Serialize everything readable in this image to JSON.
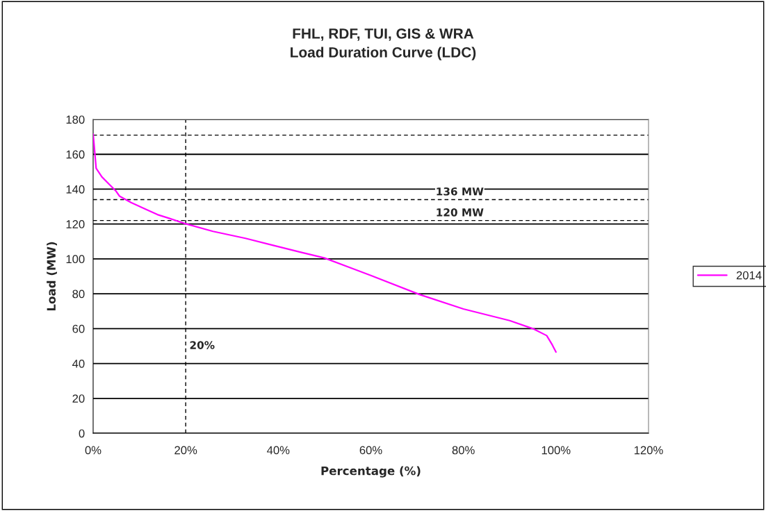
{
  "chart_data": {
    "type": "line",
    "title": "FHL, RDF, TUI, GIS & WRA\nLoad Duration Curve (LDC)",
    "xlabel": "Percentage (%)",
    "ylabel": "Load (MW)",
    "x": [
      0,
      0.65,
      1.9,
      3.4,
      4.9,
      5.7,
      8.2,
      11.4,
      13.9,
      16.4,
      19.9,
      25.9,
      32.9,
      38.9,
      44.9,
      47.4,
      50,
      60,
      70.5,
      80,
      90,
      95,
      98,
      99.2,
      100
    ],
    "series": [
      {
        "name": "2014",
        "color": "#ff00ff",
        "values": [
          171.6,
          152,
          147,
          143,
          139,
          136,
          132.3,
          128.4,
          125.4,
          123.3,
          120.2,
          115.8,
          111.8,
          107.8,
          103.8,
          102.2,
          100.5,
          90.5,
          79.6,
          71.3,
          64.6,
          60,
          56,
          50.7,
          46.6
        ]
      }
    ],
    "xlim": [
      0,
      120
    ],
    "xticks": [
      {
        "value": 0,
        "label": "0%"
      },
      {
        "value": 20,
        "label": "20%"
      },
      {
        "value": 40,
        "label": "40%"
      },
      {
        "value": 60,
        "label": "60%"
      },
      {
        "value": 80,
        "label": "80%"
      },
      {
        "value": 100,
        "label": "100%"
      },
      {
        "value": 120,
        "label": "120%"
      }
    ],
    "ylim": [
      0,
      180
    ],
    "yticks": [
      0,
      20,
      40,
      60,
      80,
      100,
      120,
      140,
      160,
      180
    ],
    "ref_lines": [
      {
        "axis": "y",
        "value": 171,
        "line_style": "dashed",
        "color": "#000000"
      },
      {
        "axis": "y",
        "value": 134,
        "label": "136 MW",
        "line_style": "dashed",
        "color": "#000000"
      },
      {
        "axis": "y",
        "value": 122,
        "label": "120 MW",
        "line_style": "dashed",
        "color": "#000000"
      },
      {
        "axis": "x",
        "value": 20,
        "label": "20%",
        "line_style": "dashed",
        "color": "#000000"
      }
    ],
    "grid": "y",
    "legend": "right",
    "marker": "none",
    "line_style": "solid"
  }
}
